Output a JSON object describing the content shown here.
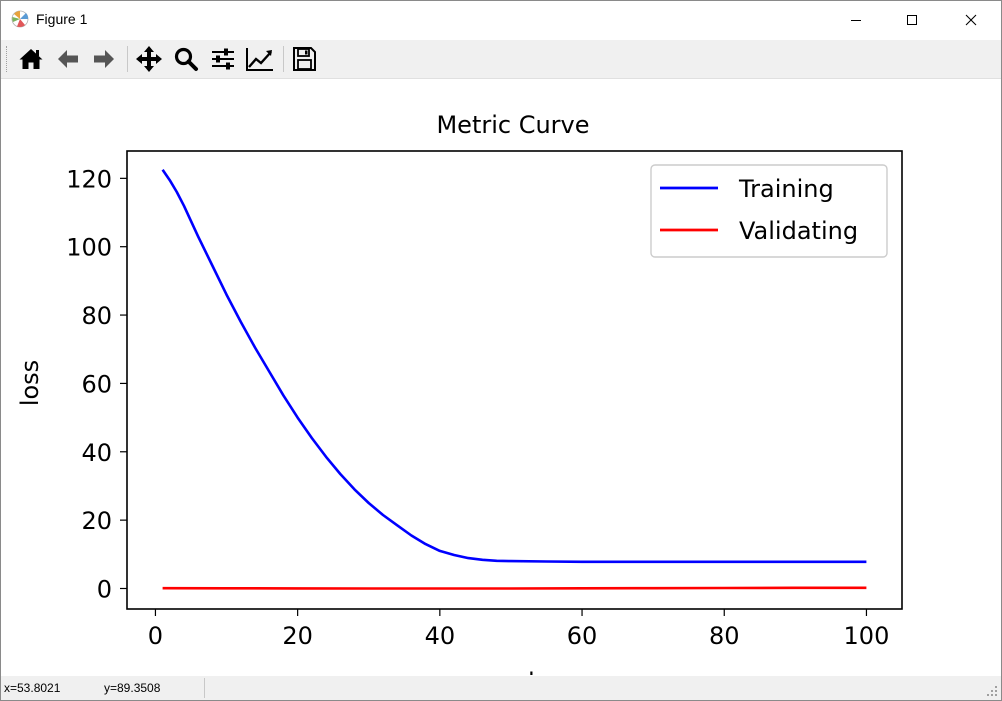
{
  "window": {
    "title": "Figure 1",
    "controls": [
      "minimize",
      "maximize",
      "close"
    ]
  },
  "toolbar": {
    "buttons": [
      {
        "name": "home",
        "icon": "home-icon"
      },
      {
        "name": "back",
        "icon": "arrow-left-icon"
      },
      {
        "name": "forward",
        "icon": "arrow-right-icon"
      },
      {
        "name": "pan",
        "icon": "move-icon"
      },
      {
        "name": "zoom",
        "icon": "magnifier-icon"
      },
      {
        "name": "configure-subplots",
        "icon": "sliders-icon"
      },
      {
        "name": "edit-axis",
        "icon": "line-chart-icon"
      },
      {
        "name": "save",
        "icon": "floppy-disk-icon"
      }
    ]
  },
  "status": {
    "x": "x=53.8021",
    "y": "y=89.3508"
  },
  "chart_data": {
    "type": "line",
    "title": "Metric Curve",
    "xlabel": "epochs",
    "ylabel": "loss",
    "xlim": [
      -4,
      105
    ],
    "ylim": [
      -6,
      128
    ],
    "xticks": [
      0,
      20,
      40,
      60,
      80,
      100
    ],
    "yticks": [
      0,
      20,
      40,
      60,
      80,
      100,
      120
    ],
    "grid": false,
    "legend_position": "top-right",
    "series": [
      {
        "name": "Training",
        "color": "#0000ff",
        "x": [
          1,
          2,
          3,
          4,
          5,
          6,
          8,
          10,
          12,
          14,
          16,
          18,
          20,
          22,
          24,
          26,
          28,
          30,
          32,
          34,
          36,
          38,
          40,
          42,
          44,
          46,
          48,
          50,
          55,
          60,
          70,
          80,
          90,
          100
        ],
        "y": [
          122.5,
          119.5,
          116,
          112,
          107.5,
          103,
          94.5,
          86,
          78,
          70.5,
          63.5,
          56.5,
          50,
          44,
          38.5,
          33.5,
          29,
          25,
          21.5,
          18.5,
          15.5,
          13,
          11,
          9.8,
          8.9,
          8.4,
          8.1,
          8.0,
          7.9,
          7.8,
          7.8,
          7.8,
          7.8,
          7.8
        ]
      },
      {
        "name": "Validating",
        "color": "#ff0000",
        "x": [
          1,
          10,
          20,
          30,
          40,
          50,
          60,
          70,
          80,
          90,
          100
        ],
        "y": [
          0.1,
          0.05,
          0.02,
          0.0,
          0.0,
          0.0,
          0.05,
          0.1,
          0.15,
          0.2,
          0.2
        ]
      }
    ]
  }
}
